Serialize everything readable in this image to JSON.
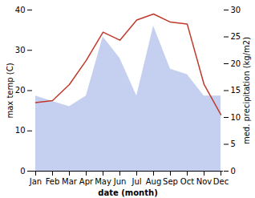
{
  "chart_data": {
    "type": "line",
    "categories": [
      "Jan",
      "Feb",
      "Mar",
      "Apr",
      "May",
      "Jun",
      "Jul",
      "Aug",
      "Sep",
      "Oct",
      "Nov",
      "Dec"
    ],
    "xlabel": "date (month)",
    "ylabel": "max temp (C)",
    "y2label": "med. precipitation (kg/m2)",
    "series": [
      {
        "type": "area",
        "axis": "y2",
        "color": "#c5d0f0",
        "values": [
          14,
          13,
          12,
          14,
          25,
          21,
          14,
          27,
          19,
          18,
          14,
          14
        ]
      },
      {
        "type": "line",
        "color": "#c0392b",
        "values": [
          17.0,
          17.5,
          21.5,
          27.5,
          34.5,
          32.5,
          37.5,
          39.0,
          37.0,
          36.5,
          21.5,
          14.0
        ]
      }
    ],
    "ylim": [
      0,
      40
    ],
    "yticks": [
      0,
      10,
      20,
      30,
      40
    ],
    "y2lim": [
      0,
      30
    ],
    "y2ticks": [
      0,
      5,
      10,
      15,
      20,
      25,
      30
    ]
  }
}
